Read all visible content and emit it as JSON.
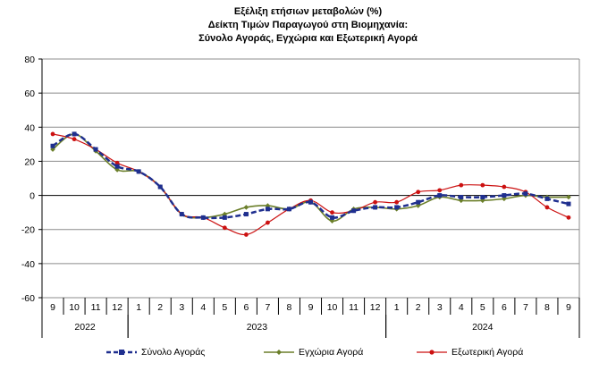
{
  "chart_data": {
    "type": "line",
    "title_lines": [
      "Εξέλιξη ετήσιων μεταβολών (%)",
      "Δείκτη Τιμών Παραγωγού στη Βιομηχανία:",
      "Σύνολο Αγοράς, Εγχώρια και Εξωτερική Αγορά"
    ],
    "ylim": [
      -60,
      80
    ],
    "yticks": [
      -60,
      -40,
      -20,
      0,
      20,
      40,
      60,
      80
    ],
    "grid": true,
    "legend_position": "bottom",
    "categories": [
      "9",
      "10",
      "11",
      "12",
      "1",
      "2",
      "3",
      "4",
      "5",
      "6",
      "7",
      "8",
      "9",
      "10",
      "11",
      "12",
      "1",
      "2",
      "3",
      "4",
      "5",
      "6",
      "7",
      "8",
      "9"
    ],
    "years": [
      {
        "label": "2022",
        "start": 0,
        "end": 4
      },
      {
        "label": "2023",
        "start": 4,
        "end": 16
      },
      {
        "label": "2024",
        "start": 16,
        "end": 25
      }
    ],
    "series": [
      {
        "name": "Σύνολο Αγοράς",
        "color": "#1f2f8f",
        "style": "dashed",
        "marker": "square",
        "values": [
          29,
          36,
          27,
          17,
          14,
          5,
          -11,
          -13,
          -13,
          -11,
          -8,
          -8,
          -4,
          -13,
          -9,
          -7,
          -7,
          -4,
          0,
          -1,
          -1,
          0,
          1,
          -2,
          -5
        ]
      },
      {
        "name": "Εγχώρια Αγορά",
        "color": "#6b7f2a",
        "style": "solid",
        "marker": "diamond",
        "values": [
          27,
          36,
          26,
          15,
          14,
          5,
          -11,
          -13,
          -11,
          -7,
          -6,
          -8,
          -4,
          -15,
          -8,
          -7,
          -8,
          -6,
          -1,
          -3,
          -3,
          -2,
          0,
          -1,
          -1
        ]
      },
      {
        "name": "Εξωτερική Αγορά",
        "color": "#cc1111",
        "style": "solid",
        "marker": "circle",
        "values": [
          36,
          33,
          27,
          19,
          14,
          5,
          -11,
          -13,
          -19,
          -23,
          -16,
          -8,
          -3,
          -10,
          -9,
          -4,
          -4,
          2,
          3,
          6,
          6,
          5,
          2,
          -7,
          -13
        ]
      }
    ]
  }
}
